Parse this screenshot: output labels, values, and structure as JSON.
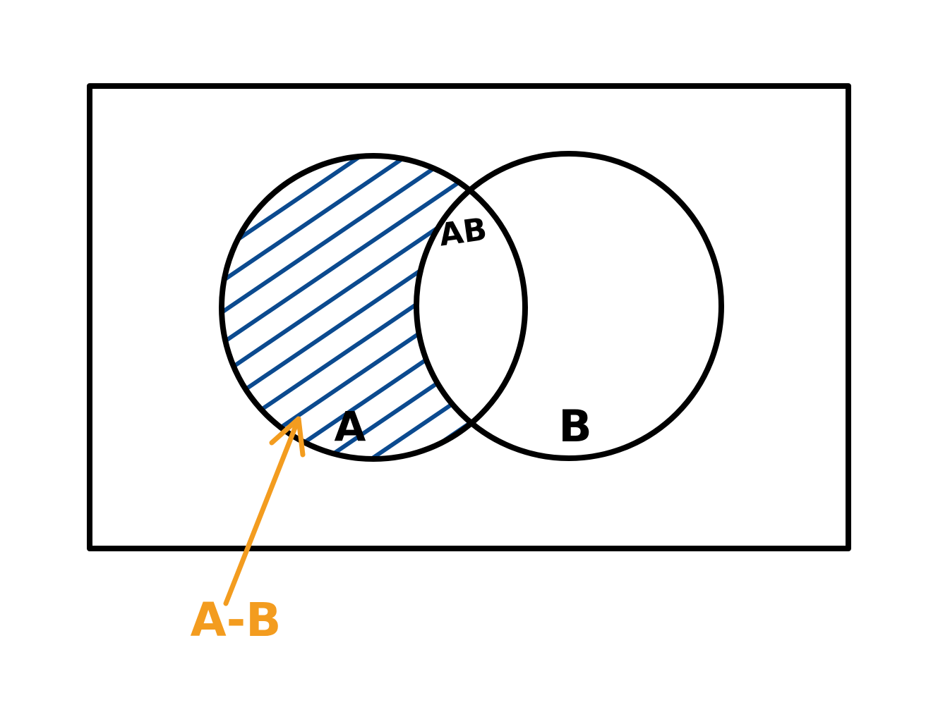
{
  "diagram": {
    "type": "venn",
    "labels": {
      "set_a": "A",
      "set_b": "B",
      "intersection": "AB",
      "difference": "A-B"
    },
    "colors": {
      "outline": "#000000",
      "hatch": "#0b4a8f",
      "annotation": "#f39c1f",
      "background": "#ffffff"
    },
    "shaded_region": "A-B"
  }
}
